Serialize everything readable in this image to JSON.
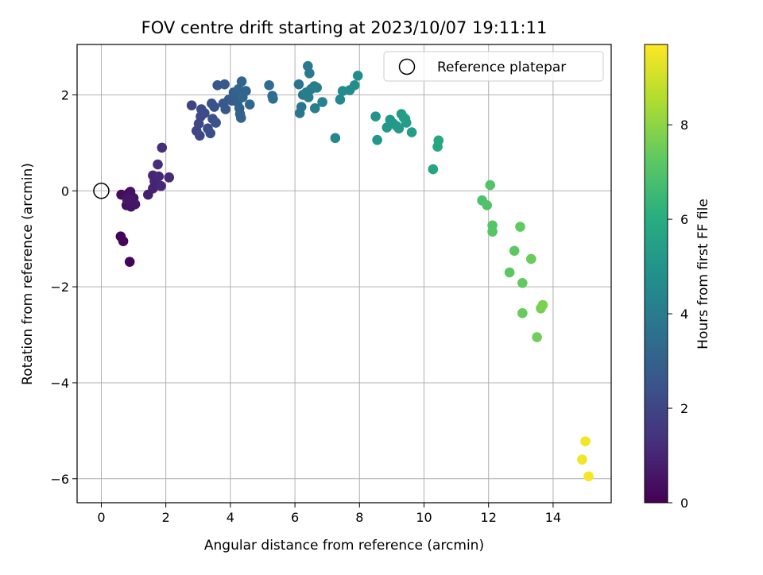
{
  "chart_data": {
    "type": "scatter",
    "title": "FOV centre drift starting at 2023/10/07 19:11:11",
    "xlabel": "Angular distance from reference (arcmin)",
    "ylabel": "Rotation from reference (arcmin)",
    "xlim": [
      -0.75,
      15.8
    ],
    "ylim": [
      -6.5,
      3.05
    ],
    "xticks": [
      0,
      2,
      4,
      6,
      8,
      10,
      12,
      14
    ],
    "yticks": [
      -6,
      -4,
      -2,
      0,
      2
    ],
    "ytick_labels": [
      "−6",
      "−4",
      "−2",
      "0",
      "2"
    ],
    "grid": true,
    "legend": {
      "label": "Reference platepar",
      "placement": "top-right"
    },
    "reference_point": {
      "x": 0,
      "y": 0
    },
    "colorbar": {
      "label": "Hours from first FF file",
      "range": [
        0,
        9.7
      ],
      "ticks": [
        0,
        2,
        4,
        6,
        8
      ],
      "colormap": "viridis"
    },
    "points": [
      {
        "x": 0.6,
        "y": -0.95,
        "t": 0.1
      },
      {
        "x": 0.68,
        "y": -1.05,
        "t": 0.12
      },
      {
        "x": 0.88,
        "y": -1.48,
        "t": 0.15
      },
      {
        "x": 0.62,
        "y": -0.08,
        "t": 0.3
      },
      {
        "x": 0.75,
        "y": -0.1,
        "t": 0.35
      },
      {
        "x": 0.78,
        "y": -0.3,
        "t": 0.4
      },
      {
        "x": 0.85,
        "y": -0.05,
        "t": 0.42
      },
      {
        "x": 0.9,
        "y": -0.02,
        "t": 0.45
      },
      {
        "x": 0.95,
        "y": -0.22,
        "t": 0.48
      },
      {
        "x": 0.92,
        "y": -0.33,
        "t": 0.5
      },
      {
        "x": 1.0,
        "y": -0.15,
        "t": 0.52
      },
      {
        "x": 1.05,
        "y": -0.28,
        "t": 0.55
      },
      {
        "x": 0.8,
        "y": -0.18,
        "t": 0.6
      },
      {
        "x": 1.45,
        "y": -0.08,
        "t": 0.8
      },
      {
        "x": 1.6,
        "y": 0.05,
        "t": 0.9
      },
      {
        "x": 1.65,
        "y": 0.2,
        "t": 0.95
      },
      {
        "x": 1.6,
        "y": 0.32,
        "t": 1.0
      },
      {
        "x": 1.78,
        "y": 0.3,
        "t": 1.05
      },
      {
        "x": 1.85,
        "y": 0.1,
        "t": 1.1
      },
      {
        "x": 2.1,
        "y": 0.28,
        "t": 1.15
      },
      {
        "x": 1.75,
        "y": 0.55,
        "t": 1.2
      },
      {
        "x": 1.88,
        "y": 0.9,
        "t": 1.25
      },
      {
        "x": 2.8,
        "y": 1.78,
        "t": 1.9
      },
      {
        "x": 2.95,
        "y": 1.25,
        "t": 2.0
      },
      {
        "x": 3.05,
        "y": 1.15,
        "t": 2.05
      },
      {
        "x": 3.02,
        "y": 1.4,
        "t": 2.1
      },
      {
        "x": 3.08,
        "y": 1.55,
        "t": 2.12
      },
      {
        "x": 3.1,
        "y": 1.7,
        "t": 2.15
      },
      {
        "x": 3.2,
        "y": 1.62,
        "t": 2.2
      },
      {
        "x": 3.3,
        "y": 1.3,
        "t": 2.25
      },
      {
        "x": 3.38,
        "y": 1.2,
        "t": 2.3
      },
      {
        "x": 3.45,
        "y": 1.5,
        "t": 2.35
      },
      {
        "x": 3.5,
        "y": 1.75,
        "t": 2.4
      },
      {
        "x": 3.55,
        "y": 1.42,
        "t": 2.45
      },
      {
        "x": 3.42,
        "y": 1.82,
        "t": 2.5
      },
      {
        "x": 3.6,
        "y": 2.2,
        "t": 2.55
      },
      {
        "x": 3.78,
        "y": 1.82,
        "t": 2.6
      },
      {
        "x": 3.85,
        "y": 1.7,
        "t": 2.65
      },
      {
        "x": 3.82,
        "y": 2.22,
        "t": 2.7
      },
      {
        "x": 3.95,
        "y": 1.9,
        "t": 2.75
      },
      {
        "x": 4.05,
        "y": 1.88,
        "t": 2.8
      },
      {
        "x": 4.1,
        "y": 2.05,
        "t": 2.85
      },
      {
        "x": 4.18,
        "y": 2.0,
        "t": 2.9
      },
      {
        "x": 4.22,
        "y": 1.85,
        "t": 2.95
      },
      {
        "x": 4.28,
        "y": 1.72,
        "t": 3.0
      },
      {
        "x": 4.3,
        "y": 1.6,
        "t": 3.05
      },
      {
        "x": 4.33,
        "y": 1.52,
        "t": 3.08
      },
      {
        "x": 4.25,
        "y": 2.12,
        "t": 3.1
      },
      {
        "x": 4.35,
        "y": 2.28,
        "t": 3.12
      },
      {
        "x": 4.48,
        "y": 2.08,
        "t": 3.15
      },
      {
        "x": 4.6,
        "y": 1.8,
        "t": 3.2
      },
      {
        "x": 4.38,
        "y": 1.95,
        "t": 3.22
      },
      {
        "x": 5.2,
        "y": 2.2,
        "t": 3.4
      },
      {
        "x": 5.3,
        "y": 1.98,
        "t": 3.45
      },
      {
        "x": 5.32,
        "y": 1.92,
        "t": 3.5
      },
      {
        "x": 6.12,
        "y": 2.22,
        "t": 3.7
      },
      {
        "x": 6.15,
        "y": 1.62,
        "t": 3.75
      },
      {
        "x": 6.2,
        "y": 1.75,
        "t": 3.8
      },
      {
        "x": 6.25,
        "y": 2.0,
        "t": 3.85
      },
      {
        "x": 6.4,
        "y": 2.6,
        "t": 3.9
      },
      {
        "x": 6.45,
        "y": 2.45,
        "t": 3.95
      },
      {
        "x": 6.5,
        "y": 2.12,
        "t": 4.0
      },
      {
        "x": 6.42,
        "y": 1.95,
        "t": 4.02
      },
      {
        "x": 6.35,
        "y": 2.05,
        "t": 4.05
      },
      {
        "x": 6.6,
        "y": 2.18,
        "t": 4.1
      },
      {
        "x": 6.68,
        "y": 2.15,
        "t": 4.15
      },
      {
        "x": 6.62,
        "y": 1.72,
        "t": 4.2
      },
      {
        "x": 6.85,
        "y": 1.85,
        "t": 4.25
      },
      {
        "x": 7.25,
        "y": 1.1,
        "t": 4.5
      },
      {
        "x": 7.4,
        "y": 1.9,
        "t": 4.55
      },
      {
        "x": 7.48,
        "y": 2.08,
        "t": 4.6
      },
      {
        "x": 7.7,
        "y": 2.1,
        "t": 4.65
      },
      {
        "x": 7.85,
        "y": 2.2,
        "t": 4.7
      },
      {
        "x": 7.95,
        "y": 2.4,
        "t": 4.75
      },
      {
        "x": 8.5,
        "y": 1.55,
        "t": 5.0
      },
      {
        "x": 8.55,
        "y": 1.06,
        "t": 5.05
      },
      {
        "x": 8.85,
        "y": 1.32,
        "t": 5.1
      },
      {
        "x": 8.95,
        "y": 1.48,
        "t": 5.15
      },
      {
        "x": 9.05,
        "y": 1.4,
        "t": 5.2
      },
      {
        "x": 9.15,
        "y": 1.35,
        "t": 5.22
      },
      {
        "x": 9.22,
        "y": 1.3,
        "t": 5.25
      },
      {
        "x": 9.3,
        "y": 1.6,
        "t": 5.28
      },
      {
        "x": 9.38,
        "y": 1.52,
        "t": 5.3
      },
      {
        "x": 9.45,
        "y": 1.42,
        "t": 5.32
      },
      {
        "x": 9.42,
        "y": 1.5,
        "t": 5.35
      },
      {
        "x": 9.62,
        "y": 1.22,
        "t": 5.4
      },
      {
        "x": 10.28,
        "y": 0.45,
        "t": 5.7
      },
      {
        "x": 10.42,
        "y": 0.92,
        "t": 5.75
      },
      {
        "x": 10.45,
        "y": 1.05,
        "t": 5.8
      },
      {
        "x": 11.8,
        "y": -0.2,
        "t": 6.9
      },
      {
        "x": 11.95,
        "y": -0.3,
        "t": 6.95
      },
      {
        "x": 12.05,
        "y": 0.12,
        "t": 7.0
      },
      {
        "x": 12.12,
        "y": -0.72,
        "t": 7.05
      },
      {
        "x": 12.12,
        "y": -0.85,
        "t": 7.1
      },
      {
        "x": 12.65,
        "y": -1.7,
        "t": 7.2
      },
      {
        "x": 12.8,
        "y": -1.25,
        "t": 7.25
      },
      {
        "x": 12.98,
        "y": -0.75,
        "t": 7.3
      },
      {
        "x": 13.05,
        "y": -1.92,
        "t": 7.35
      },
      {
        "x": 13.05,
        "y": -2.55,
        "t": 7.4
      },
      {
        "x": 13.32,
        "y": -1.42,
        "t": 7.45
      },
      {
        "x": 13.5,
        "y": -3.05,
        "t": 7.55
      },
      {
        "x": 13.62,
        "y": -2.45,
        "t": 7.65
      },
      {
        "x": 13.68,
        "y": -2.38,
        "t": 7.7
      },
      {
        "x": 14.9,
        "y": -5.6,
        "t": 9.5
      },
      {
        "x": 15.0,
        "y": -5.22,
        "t": 9.55
      },
      {
        "x": 15.1,
        "y": -5.95,
        "t": 9.6
      }
    ]
  }
}
